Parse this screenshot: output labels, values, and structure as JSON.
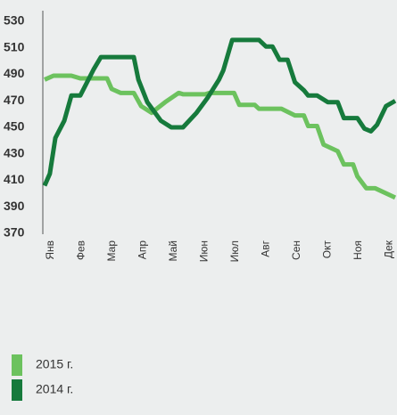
{
  "chart_data": {
    "type": "line",
    "xlim": [
      -0.2,
      11.2
    ],
    "xticks": [
      {
        "value": 0,
        "label": "Янв"
      },
      {
        "value": 1,
        "label": "Фев"
      },
      {
        "value": 2,
        "label": "Мар"
      },
      {
        "value": 3,
        "label": "Апр"
      },
      {
        "value": 4,
        "label": "Май"
      },
      {
        "value": 5,
        "label": "Июн"
      },
      {
        "value": 6,
        "label": "Июл"
      },
      {
        "value": 7,
        "label": "Авг"
      },
      {
        "value": 8,
        "label": "Сен"
      },
      {
        "value": 9,
        "label": "Окт"
      },
      {
        "value": 10,
        "label": "Ноя"
      },
      {
        "value": 11,
        "label": "Дек"
      }
    ],
    "ylim": [
      370,
      530
    ],
    "yticks": [
      370,
      390,
      410,
      430,
      450,
      470,
      490,
      510,
      530
    ],
    "series": [
      {
        "name": "2015 г.",
        "color": "#6cc25e",
        "x": [
          -0.2,
          0.09,
          0.67,
          0.96,
          1.83,
          1.98,
          2.27,
          2.7,
          2.94,
          3.28,
          3.72,
          4.16,
          4.3,
          5.03,
          5.17,
          5.96,
          6.13,
          6.63,
          6.77,
          7.5,
          7.94,
          8.23,
          8.37,
          8.66,
          8.87,
          9.33,
          9.53,
          9.83,
          9.97,
          10.26,
          10.55,
          11.2
        ],
        "values": [
          486,
          489,
          489,
          487,
          487,
          479,
          476,
          476,
          466,
          461,
          469,
          476,
          475,
          475,
          476,
          476,
          467,
          467,
          464,
          464,
          459,
          459,
          451,
          451,
          437,
          432,
          422,
          422,
          413,
          404,
          404,
          397
        ]
      },
      {
        "name": "2014 г.",
        "color": "#167a3c",
        "x": [
          -0.2,
          -0.03,
          0.15,
          0.44,
          0.67,
          0.96,
          1.4,
          1.63,
          2.7,
          2.85,
          3.14,
          3.58,
          3.92,
          4.3,
          4.74,
          5.09,
          5.47,
          5.61,
          5.9,
          6.77,
          7.0,
          7.21,
          7.44,
          7.7,
          7.94,
          8.23,
          8.37,
          8.66,
          9.01,
          9.33,
          9.53,
          9.97,
          10.2,
          10.41,
          10.61,
          10.9,
          11.2
        ],
        "values": [
          406,
          415,
          442,
          455,
          474,
          474,
          494,
          503,
          503,
          486,
          469,
          455,
          450,
          450,
          461,
          472,
          486,
          493,
          516,
          516,
          511,
          511,
          501,
          501,
          484,
          478,
          474,
          474,
          469,
          469,
          457,
          457,
          449,
          447,
          452,
          466,
          470
        ]
      }
    ]
  }
}
